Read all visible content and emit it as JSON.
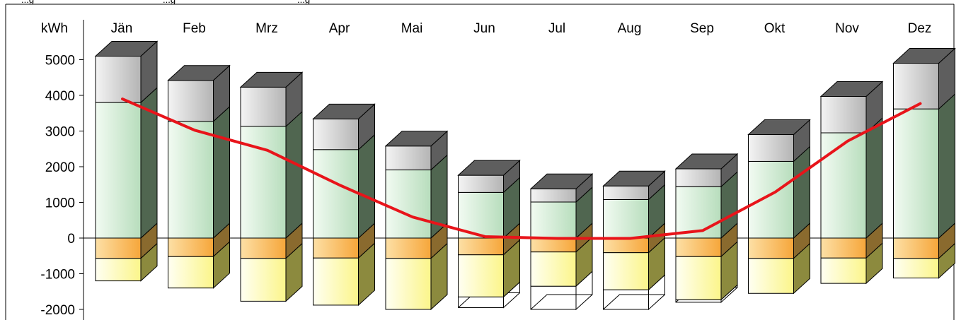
{
  "chart_data": {
    "type": "bar",
    "title": "",
    "note_fragments": [
      "...g",
      "...g",
      "...g"
    ],
    "unit_label": "kWh",
    "ylim": [
      -2000,
      5000
    ],
    "yticks": [
      5000,
      4000,
      3000,
      2000,
      1000,
      0,
      -1000,
      -2000
    ],
    "ytick_labels": [
      "5000",
      "4000",
      "3000",
      "2000",
      "1000",
      "0",
      "-1000",
      "-2000"
    ],
    "categories": [
      "Jän",
      "Feb",
      "Mrz",
      "Apr",
      "Mai",
      "Jun",
      "Jul",
      "Aug",
      "Sep",
      "Okt",
      "Nov",
      "Dez"
    ],
    "stack_top": [
      5100,
      4420,
      4230,
      3340,
      2580,
      1760,
      1380,
      1460,
      1940,
      2900,
      3970,
      4900
    ],
    "stack_split": [
      3800,
      3270,
      3130,
      2480,
      1910,
      1280,
      1010,
      1080,
      1440,
      2150,
      2950,
      3620
    ],
    "neg_split": [
      -570,
      -520,
      -570,
      -560,
      -570,
      -470,
      -390,
      -410,
      -520,
      -570,
      -560,
      -570
    ],
    "neg_bottom": [
      -1200,
      -1400,
      -1770,
      -1880,
      -2000,
      -1650,
      -1350,
      -1450,
      -1730,
      -1550,
      -1270,
      -1120
    ],
    "outline_bottom": [
      null,
      null,
      null,
      null,
      null,
      -1950,
      -2000,
      -2000,
      -1800,
      null,
      null,
      null
    ],
    "series": [
      {
        "name": "",
        "type": "line",
        "values": [
          3900,
          3020,
          2460,
          1480,
          590,
          40,
          -10,
          -10,
          210,
          1290,
          2720,
          3770
        ]
      }
    ],
    "colors": {
      "top_block": "#d8d8d8",
      "top_cap": "#5e5e5e",
      "green_block": "#cfe6cf",
      "green_side": "#506650",
      "orange_block": "#f5b54a",
      "orange_side": "#8a6a2e",
      "yellow_block": "#fbf6a0",
      "yellow_side": "#8c8a3e",
      "line": "#e8141a"
    },
    "grid": false
  }
}
